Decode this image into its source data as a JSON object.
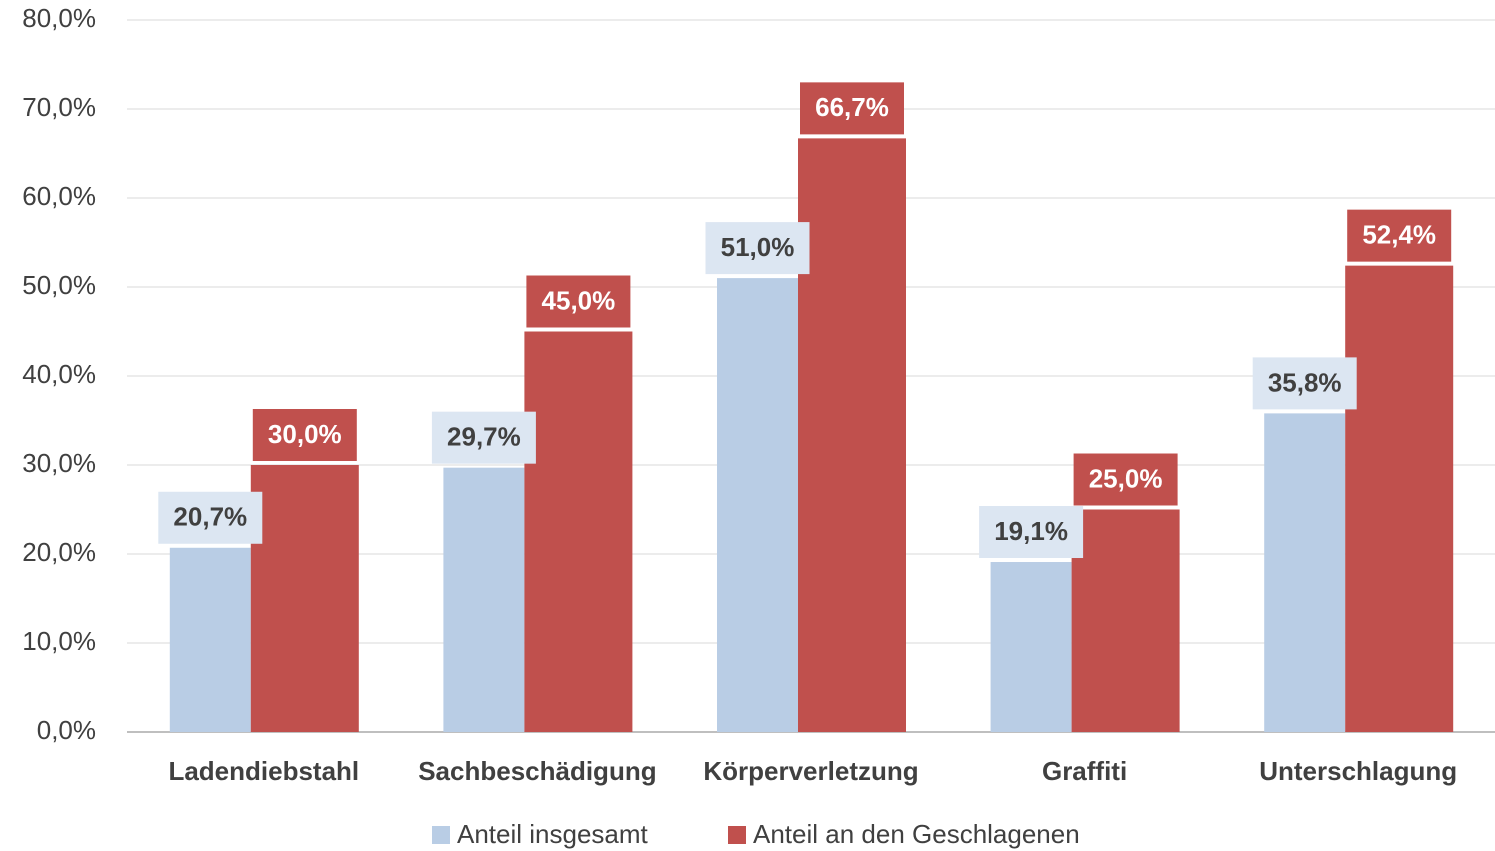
{
  "chart_data": {
    "type": "bar",
    "categories": [
      "Ladendiebstahl",
      "Sachbeschädigung",
      "Körperverletzung",
      "Graffiti",
      "Unterschlagung"
    ],
    "series": [
      {
        "name": "Anteil insgesamt",
        "color": "#b9cde5",
        "values": [
          20.7,
          29.7,
          51.0,
          19.1,
          35.8
        ],
        "value_labels": [
          "20,7%",
          "29,7%",
          "51,0%",
          "19,1%",
          "35,8%"
        ]
      },
      {
        "name": "Anteil an den Geschlagenen",
        "color": "#c0504d",
        "values": [
          30.0,
          45.0,
          66.7,
          25.0,
          52.4
        ],
        "value_labels": [
          "30,0%",
          "45,0%",
          "66,7%",
          "25,0%",
          "52,4%"
        ]
      }
    ],
    "ylim": [
      0,
      80
    ],
    "yticks": [
      {
        "value": 0,
        "label": "0,0%"
      },
      {
        "value": 10,
        "label": "10,0%"
      },
      {
        "value": 20,
        "label": "20,0%"
      },
      {
        "value": 30,
        "label": "30,0%"
      },
      {
        "value": 40,
        "label": "40,0%"
      },
      {
        "value": 50,
        "label": "50,0%"
      },
      {
        "value": 60,
        "label": "60,0%"
      },
      {
        "value": 70,
        "label": "70,0%"
      },
      {
        "value": 80,
        "label": "80,0%"
      }
    ],
    "grid": true,
    "legend": "bottom"
  }
}
